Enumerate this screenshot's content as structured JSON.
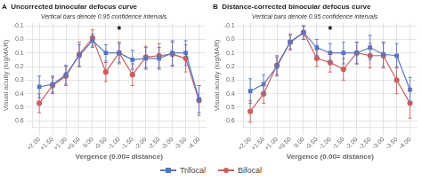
{
  "chart_data": [
    {
      "type": "line",
      "panel_label": "A",
      "title": "Uncorrected binocular defocus curve",
      "subtitle": "Vertical bars denote 0.95 confidence intervals",
      "x_label": "Vergence (0.00= distance)",
      "y_label": "Visual acuity (logMAR)",
      "categories": [
        "+2.00",
        "+1.50",
        "+1.00",
        "+0.50",
        "0.00",
        "-0.50",
        "-1.00",
        "-1.50",
        "-2.00",
        "-2.50",
        "-3.00",
        "-3.50",
        "-4.00"
      ],
      "series": [
        {
          "name": "Trifocal",
          "color": "#5575c2",
          "marker": "square",
          "values": [
            0.35,
            0.33,
            0.26,
            0.12,
            0.01,
            0.1,
            0.1,
            0.15,
            0.14,
            0.14,
            0.1,
            0.1,
            0.44
          ],
          "errors": [
            0.08,
            0.06,
            0.07,
            0.08,
            0.05,
            0.06,
            0.07,
            0.07,
            0.08,
            0.08,
            0.09,
            0.09,
            0.1
          ]
        },
        {
          "name": "Bifocal",
          "color": "#c96060",
          "marker": "circle",
          "values": [
            0.47,
            0.34,
            0.27,
            0.11,
            -0.01,
            0.24,
            0.1,
            0.26,
            0.13,
            0.12,
            0.11,
            0.14,
            0.45
          ],
          "errors": [
            0.07,
            0.06,
            0.07,
            0.09,
            0.06,
            0.07,
            0.08,
            0.08,
            0.08,
            0.09,
            0.09,
            0.1,
            0.11
          ]
        }
      ],
      "annotations": [
        {
          "x": "-1.00",
          "y": -0.075,
          "text": "*"
        }
      ],
      "ylim": [
        0.65,
        -0.12
      ],
      "yticks": [
        -0.1,
        {
          "value": 0,
          "label": "0.0"
        },
        0.1,
        0.2,
        0.3,
        0.4,
        0.5,
        0.6
      ],
      "grid": true,
      "legend": "bottom"
    },
    {
      "type": "line",
      "panel_label": "B",
      "title": "Distance-corrected binocular defocus curve",
      "subtitle": "Vertical bars denote 0.95 confidence intervals",
      "x_label": "Vergence (0.00= distance)",
      "y_label": "Visual acuity (logMAR)",
      "categories": [
        "+2.00",
        "+1.50",
        "+1.00",
        "+0.50",
        "0.00",
        "-0.50",
        "-1.00",
        "-1.50",
        "-2.00",
        "-2.50",
        "-3.00",
        "-3.50",
        "-4.00"
      ],
      "series": [
        {
          "name": "Trifocal",
          "color": "#5575c2",
          "marker": "square",
          "values": [
            0.38,
            0.33,
            0.2,
            0.02,
            -0.05,
            0.06,
            0.1,
            0.1,
            0.1,
            0.06,
            0.11,
            0.12,
            0.37
          ],
          "errors": [
            0.09,
            0.07,
            0.07,
            0.05,
            0.05,
            0.06,
            0.07,
            0.08,
            0.08,
            0.09,
            0.09,
            0.09,
            0.09
          ]
        },
        {
          "name": "Bifocal",
          "color": "#c96060",
          "marker": "circle",
          "values": [
            0.53,
            0.4,
            0.19,
            0.02,
            -0.05,
            0.14,
            0.17,
            0.22,
            0.1,
            0.12,
            0.12,
            0.3,
            0.47
          ],
          "errors": [
            0.08,
            0.07,
            0.07,
            0.06,
            0.05,
            0.06,
            0.07,
            0.08,
            0.08,
            0.09,
            0.09,
            0.1,
            0.11
          ]
        }
      ],
      "annotations": [
        {
          "x": "-1.00",
          "y": -0.075,
          "text": "*"
        }
      ],
      "ylim": [
        0.65,
        -0.12
      ],
      "yticks": [
        -0.1,
        {
          "value": 0,
          "label": "0.0"
        },
        0.1,
        0.2,
        0.3,
        0.4,
        0.5,
        0.6
      ],
      "grid": true,
      "legend": "bottom"
    }
  ]
}
